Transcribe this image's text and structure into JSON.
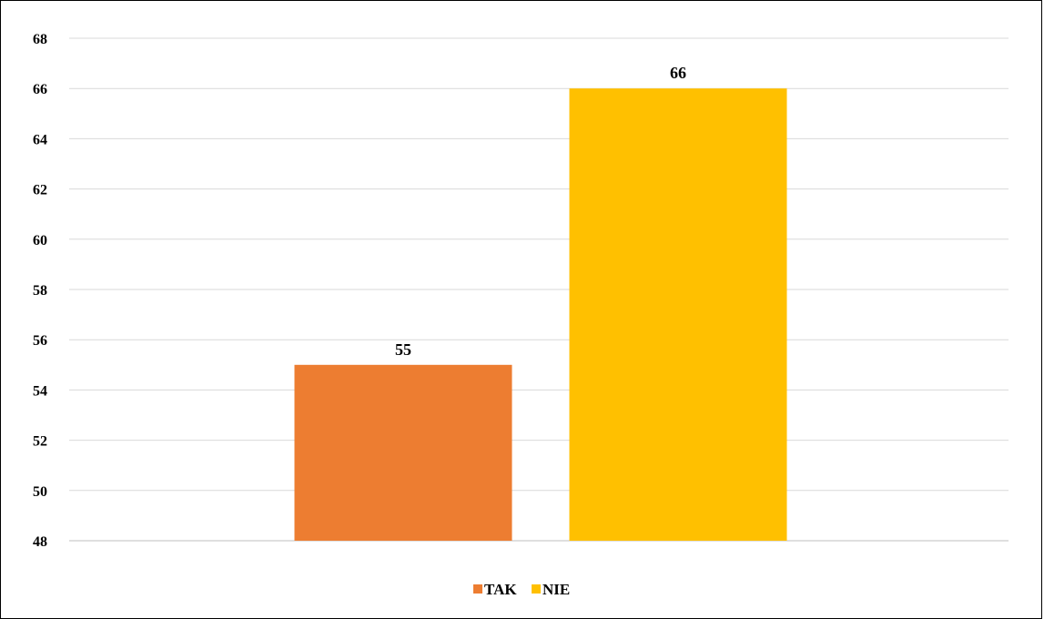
{
  "chart_data": {
    "type": "bar",
    "categories": [
      ""
    ],
    "series": [
      {
        "name": "TAK",
        "values": [
          55
        ],
        "color": "#ED7D31"
      },
      {
        "name": "NIE",
        "values": [
          66
        ],
        "color": "#FFC000"
      }
    ],
    "title": "",
    "xlabel": "",
    "ylabel": "",
    "ylim": [
      48,
      68
    ],
    "yticks": [
      48,
      50,
      52,
      54,
      56,
      58,
      60,
      62,
      64,
      66,
      68
    ],
    "grid": true,
    "data_labels": true,
    "legend_position": "bottom"
  }
}
